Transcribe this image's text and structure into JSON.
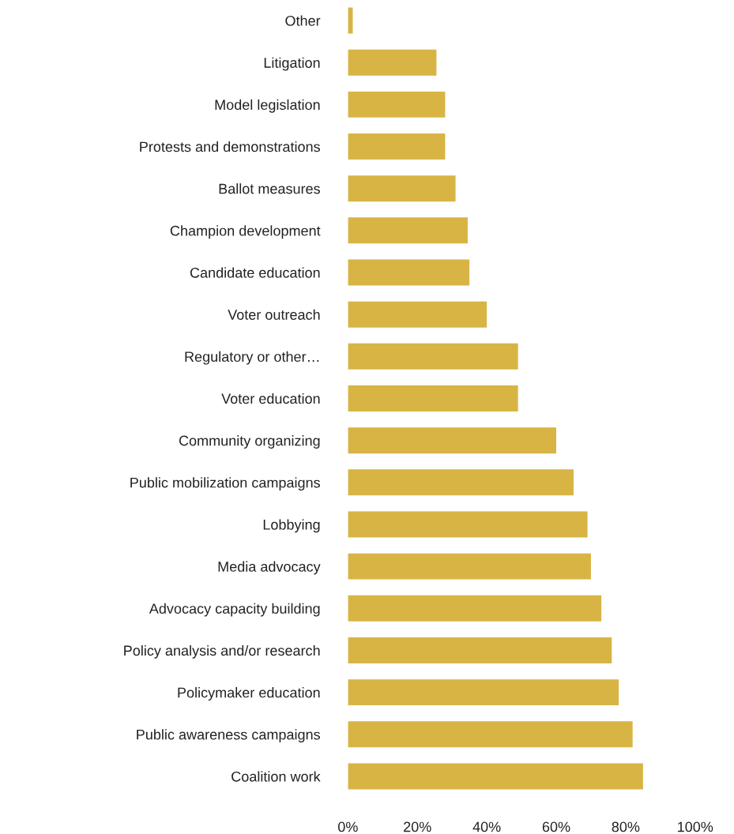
{
  "chart_data": {
    "type": "bar",
    "orientation": "horizontal",
    "categories": [
      "Other",
      "Litigation",
      "Model legislation",
      "Protests and demonstrations",
      "Ballot measures",
      "Champion development",
      "Candidate education",
      "Voter outreach",
      "Regulatory or other…",
      "Voter education",
      "Community organizing",
      "Public mobilization campaigns",
      "Lobbying",
      "Media advocacy",
      "Advocacy capacity building",
      "Policy analysis and/or research",
      "Policymaker education",
      "Public awareness campaigns",
      "Coalition work"
    ],
    "values": [
      1.4,
      25.5,
      28,
      28,
      31,
      34.5,
      35,
      40,
      49,
      49,
      60,
      65,
      69,
      70,
      73,
      76,
      78,
      82,
      85
    ],
    "color": "#d8b445",
    "xlim": [
      0,
      100
    ],
    "xticks": [
      {
        "value": 0,
        "label": "0%"
      },
      {
        "value": 20,
        "label": "20%"
      },
      {
        "value": 40,
        "label": "40%"
      },
      {
        "value": 60,
        "label": "60%"
      },
      {
        "value": 80,
        "label": "80%"
      },
      {
        "value": 100,
        "label": "100%"
      }
    ],
    "grid": false,
    "legend": false
  }
}
